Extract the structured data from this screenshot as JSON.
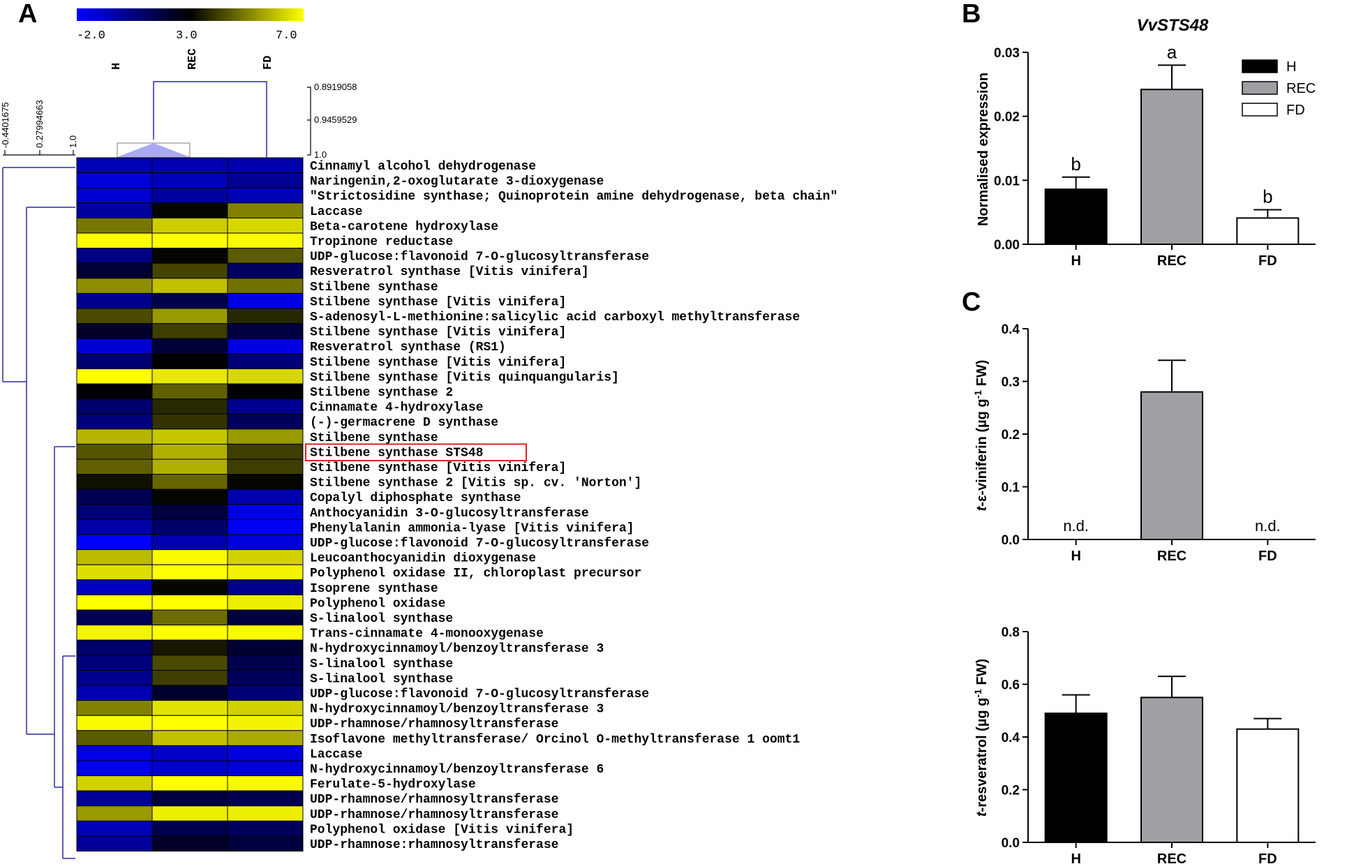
{
  "panel_labels": {
    "a": "A",
    "b": "B",
    "c": "C"
  },
  "chart_data": [
    {
      "type": "heatmap",
      "id": "A",
      "colorbar": {
        "min_label": "-2.0",
        "mid_label": "3.0",
        "max_label": "7.0",
        "range": [
          -2.0,
          7.0
        ],
        "colors": [
          "#0000ff",
          "#000000",
          "#ffff00"
        ]
      },
      "columns": [
        "H",
        "REC",
        "FD"
      ],
      "column_dendrogram_scale": [
        "0.8919058",
        "0.9459529",
        "1.0"
      ],
      "row_dendrogram_scale": [
        "-0.4401675",
        "0.27994663",
        "1.0"
      ],
      "highlighted_row": 19,
      "rows": [
        {
          "label": "Cinnamyl alcohol dehydrogenase",
          "values": [
            -0.7,
            -0.6,
            -0.5
          ]
        },
        {
          "label": "Naringenin,2-oxoglutarate 3-dioxygenase",
          "values": [
            -1.3,
            -0.8,
            -0.1
          ]
        },
        {
          "label": "\"Strictosidine synthase; Quinoprotein amine dehydrogenase, beta chain\"",
          "values": [
            -1.2,
            -0.3,
            -0.7
          ]
        },
        {
          "label": "Laccase",
          "values": [
            -0.3,
            2.6,
            4.8
          ]
        },
        {
          "label": "Beta-carotene hydroxylase",
          "values": [
            4.6,
            6.1,
            6.3
          ]
        },
        {
          "label": "Tropinone reductase",
          "values": [
            7.0,
            7.0,
            6.9
          ]
        },
        {
          "label": "UDP-glucose:flavonoid 7-O-glucosyltransferase",
          "values": [
            0.2,
            2.6,
            4.1
          ]
        },
        {
          "label": "Resveratrol synthase [Vitis vinifera]",
          "values": [
            1.6,
            3.7,
            0.8
          ]
        },
        {
          "label": "Stilbene synthase",
          "values": [
            5.0,
            5.9,
            4.5
          ]
        },
        {
          "label": "Stilbene synthase [Vitis vinifera]",
          "values": [
            0.0,
            1.2,
            -1.5
          ]
        },
        {
          "label": "S-adenosyl-L-methionine:salicylic acid carboxyl methyltransferase",
          "values": [
            3.8,
            5.2,
            3.2
          ]
        },
        {
          "label": "Stilbene synthase [Vitis vinifera]",
          "values": [
            1.8,
            3.6,
            1.4
          ]
        },
        {
          "label": "Resveratrol synthase (RS1)",
          "values": [
            -1.2,
            1.5,
            -1.5
          ]
        },
        {
          "label": "Stilbene synthase [Vitis vinifera]",
          "values": [
            0.5,
            2.5,
            0.4
          ]
        },
        {
          "label": "Stilbene synthase [Vitis quinquangularis]",
          "values": [
            7.0,
            6.6,
            6.3
          ]
        },
        {
          "label": "Stilbene synthase 2",
          "values": [
            2.4,
            4.2,
            2.4
          ]
        },
        {
          "label": "Cinnamate 4-hydroxylase",
          "values": [
            0.6,
            3.2,
            0.0
          ]
        },
        {
          "label": "(-)-germacrene D synthase",
          "values": [
            0.3,
            3.4,
            0.9
          ]
        },
        {
          "label": "Stilbene synthase",
          "values": [
            5.7,
            6.0,
            5.2
          ]
        },
        {
          "label": "Stilbene synthase STS48",
          "values": [
            4.0,
            5.6,
            3.6
          ]
        },
        {
          "label": "Stilbene synthase [Vitis vinifera]",
          "values": [
            4.2,
            5.6,
            3.6
          ]
        },
        {
          "label": "Stilbene synthase 2 [Vitis sp. cv. 'Norton']",
          "values": [
            2.8,
            4.3,
            2.6
          ]
        },
        {
          "label": "Copalyl diphosphate synthase",
          "values": [
            1.0,
            2.6,
            -0.6
          ]
        },
        {
          "label": "Anthocyanidin 3-O-glucosyltransferase",
          "values": [
            0.4,
            1.4,
            -1.6
          ]
        },
        {
          "label": "Phenylalanin ammonia-lyase [Vitis vinifera]",
          "values": [
            -0.4,
            0.7,
            -1.8
          ]
        },
        {
          "label": "UDP-glucose:flavonoid 7-O-glucosyltransferase",
          "values": [
            -2.0,
            -0.6,
            -1.4
          ]
        },
        {
          "label": "Leucoanthocyanidin dioxygenase",
          "values": [
            5.8,
            6.9,
            6.2
          ]
        },
        {
          "label": "Polyphenol oxidase II, chloroplast precursor",
          "values": [
            6.4,
            7.0,
            6.8
          ]
        },
        {
          "label": "Isoprene synthase",
          "values": [
            -0.9,
            2.6,
            0.0
          ]
        },
        {
          "label": "Polyphenol oxidase",
          "values": [
            7.0,
            7.0,
            6.7
          ]
        },
        {
          "label": "S-linalool synthase",
          "values": [
            1.0,
            4.4,
            1.4
          ]
        },
        {
          "label": "Trans-cinnamate 4-monooxygenase",
          "values": [
            6.8,
            7.0,
            6.9
          ]
        },
        {
          "label": "N-hydroxycinnamoyl/benzoyltransferase 3",
          "values": [
            0.6,
            2.9,
            1.6
          ]
        },
        {
          "label": "S-linalool synthase",
          "values": [
            0.3,
            3.8,
            1.1
          ]
        },
        {
          "label": "S-linalool synthase",
          "values": [
            0.0,
            3.6,
            0.9
          ]
        },
        {
          "label": "UDP-glucose:flavonoid 7-O-glucosyltransferase",
          "values": [
            -0.6,
            1.7,
            0.4
          ]
        },
        {
          "label": "N-hydroxycinnamoyl/benzoyltransferase 3",
          "values": [
            4.8,
            6.5,
            6.2
          ]
        },
        {
          "label": "UDP-rhamnose/rhamnosyltransferase",
          "values": [
            6.9,
            7.0,
            6.8
          ]
        },
        {
          "label": "Isoflavone methyltransferase/ Orcinol O-methyltransferase 1 oomt1",
          "values": [
            4.1,
            5.9,
            5.5
          ]
        },
        {
          "label": "Laccase",
          "values": [
            -1.6,
            -1.0,
            -1.4
          ]
        },
        {
          "label": "N-hydroxycinnamoyl/benzoyltransferase 6",
          "values": [
            -1.7,
            -1.1,
            -1.3
          ]
        },
        {
          "label": "Ferulate-5-hydroxylase",
          "values": [
            6.2,
            7.0,
            6.9
          ]
        },
        {
          "label": "UDP-rhamnose/rhamnosyltransferase",
          "values": [
            -0.2,
            1.4,
            1.1
          ]
        },
        {
          "label": "UDP-rhamnose/rhamnosyltransferase",
          "values": [
            5.2,
            6.7,
            6.7
          ]
        },
        {
          "label": "Polyphenol oxidase [Vitis vinifera]",
          "values": [
            -0.8,
            1.1,
            0.9
          ]
        },
        {
          "label": "UDP-rhamnose:rhamnosyltransferase",
          "values": [
            -0.2,
            1.8,
            1.4
          ]
        }
      ]
    },
    {
      "type": "bar",
      "id": "B",
      "title": "VvSTS48",
      "categories": [
        "H",
        "REC",
        "FD"
      ],
      "values": [
        0.0086,
        0.0242,
        0.0041
      ],
      "errors": [
        0.0019,
        0.0038,
        0.0013
      ],
      "letters": [
        "b",
        "a",
        "b"
      ],
      "colors": [
        "#000000",
        "#a0a0a4",
        "#ffffff"
      ],
      "ylabel": "Normalised expression",
      "ylim": [
        0,
        0.03
      ],
      "yticks": [
        "0.00",
        "0.01",
        "0.02",
        "0.03"
      ],
      "legend": [
        "H",
        "REC",
        "FD"
      ],
      "legend_position": "top-right"
    },
    {
      "type": "bar",
      "id": "C-top",
      "categories": [
        "H",
        "REC",
        "FD"
      ],
      "values": [
        0,
        0.28,
        0
      ],
      "errors": [
        0,
        0.06,
        0
      ],
      "annotations": [
        "n.d.",
        "",
        "n.d."
      ],
      "colors": [
        "#000000",
        "#a0a0a4",
        "#ffffff"
      ],
      "ylabel_prefix": "t",
      "ylabel_main": "-ε-viniferin (µg g",
      "ylabel_sup": "-1",
      "ylabel_suffix": " FW)",
      "ylim": [
        0,
        0.4
      ],
      "yticks": [
        "0.0",
        "0.1",
        "0.2",
        "0.3",
        "0.4"
      ]
    },
    {
      "type": "bar",
      "id": "C-bottom",
      "categories": [
        "H",
        "REC",
        "FD"
      ],
      "values": [
        0.49,
        0.55,
        0.43
      ],
      "errors": [
        0.07,
        0.08,
        0.04
      ],
      "colors": [
        "#000000",
        "#a0a0a4",
        "#ffffff"
      ],
      "ylabel_prefix": "t",
      "ylabel_main": "-resveratrol (µg g",
      "ylabel_sup": "-1",
      "ylabel_suffix": " FW)",
      "ylim": [
        0,
        0.8
      ],
      "yticks": [
        "0.0",
        "0.2",
        "0.4",
        "0.6",
        "0.8"
      ]
    }
  ]
}
